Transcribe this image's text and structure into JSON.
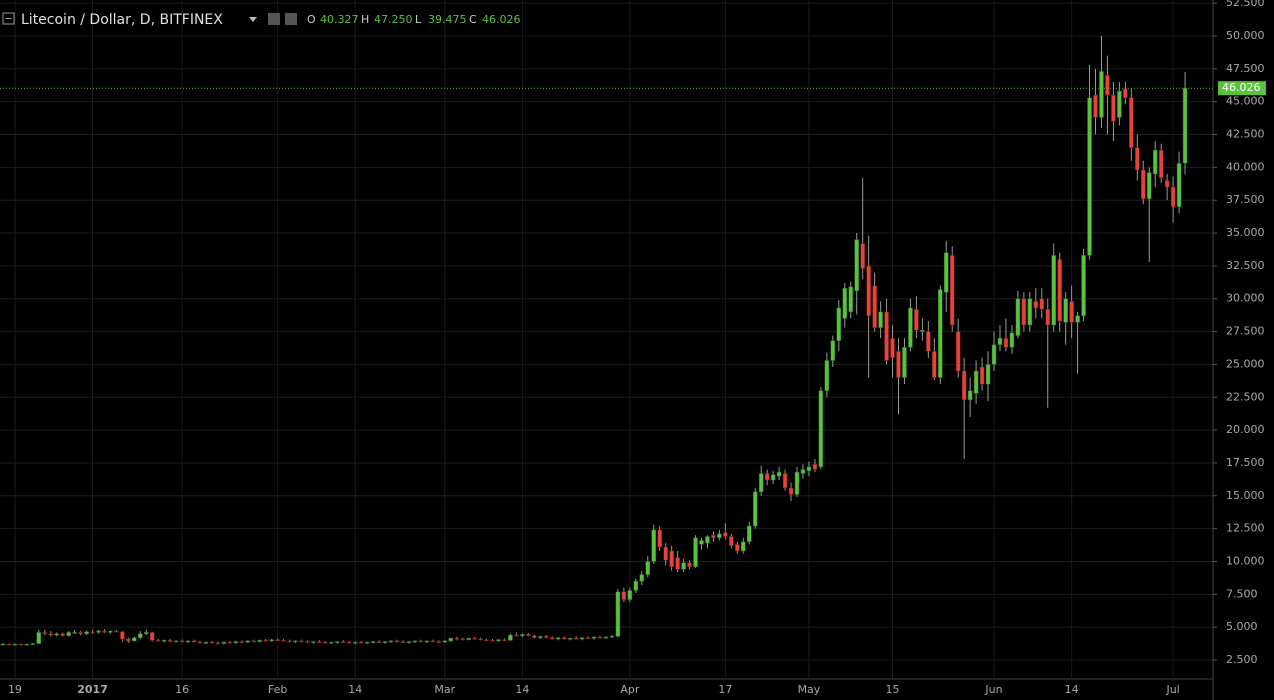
{
  "chart_data": {
    "type": "candlestick",
    "title": "Litecoin / Dollar, D, BITFINEX",
    "legend": [
      {
        "key": "O",
        "value": "40.327"
      },
      {
        "key": "H",
        "value": "47.250"
      },
      {
        "key": "L",
        "value": "39.475"
      },
      {
        "key": "C",
        "value": "46.026"
      }
    ],
    "up_color": "#5bc23f",
    "down_color": "#e5433b",
    "grid": true,
    "last_price": {
      "value": 46.026,
      "label": "46.026"
    },
    "ylim": [
      1.13,
      52.74
    ],
    "yticks": [
      {
        "value": 2.5,
        "label": "2.500"
      },
      {
        "value": 5,
        "label": "5.000"
      },
      {
        "value": 7.5,
        "label": "7.500"
      },
      {
        "value": 10,
        "label": "10.000"
      },
      {
        "value": 12.5,
        "label": "12.500"
      },
      {
        "value": 15,
        "label": "15.000"
      },
      {
        "value": 17.5,
        "label": "17.500"
      },
      {
        "value": 20,
        "label": "20.000"
      },
      {
        "value": 22.5,
        "label": "22.500"
      },
      {
        "value": 25,
        "label": "25.000"
      },
      {
        "value": 27.5,
        "label": "27.500"
      },
      {
        "value": 30,
        "label": "30.000"
      },
      {
        "value": 32.5,
        "label": "32.500"
      },
      {
        "value": 35,
        "label": "35.000"
      },
      {
        "value": 37.5,
        "label": "37.500"
      },
      {
        "value": 40,
        "label": "40.000"
      },
      {
        "value": 42.5,
        "label": "42.500"
      },
      {
        "value": 45,
        "label": "45.000"
      },
      {
        "value": 47.5,
        "label": "47.500"
      },
      {
        "value": 50,
        "label": "50.000"
      },
      {
        "value": 52.5,
        "label": "52.500"
      }
    ],
    "categories": [
      null,
      null,
      "19",
      null,
      null,
      null,
      null,
      null,
      null,
      null,
      null,
      null,
      null,
      null,
      null,
      "2017",
      null,
      null,
      null,
      null,
      null,
      null,
      null,
      null,
      null,
      null,
      null,
      null,
      null,
      null,
      "16",
      null,
      null,
      null,
      null,
      null,
      null,
      null,
      null,
      null,
      null,
      null,
      null,
      null,
      null,
      null,
      "Feb",
      null,
      null,
      null,
      null,
      null,
      null,
      null,
      null,
      null,
      null,
      null,
      null,
      "14",
      null,
      null,
      null,
      null,
      null,
      null,
      null,
      null,
      null,
      null,
      null,
      null,
      null,
      null,
      "Mar",
      null,
      null,
      null,
      null,
      null,
      null,
      null,
      null,
      null,
      null,
      null,
      null,
      "14",
      null,
      null,
      null,
      null,
      null,
      null,
      null,
      null,
      null,
      null,
      null,
      null,
      null,
      null,
      null,
      null,
      null,
      "Apr",
      null,
      null,
      null,
      null,
      null,
      null,
      null,
      null,
      null,
      null,
      null,
      null,
      null,
      null,
      null,
      "17",
      null,
      null,
      null,
      null,
      null,
      null,
      null,
      null,
      null,
      null,
      null,
      null,
      null,
      "May",
      null,
      null,
      null,
      null,
      null,
      null,
      null,
      null,
      null,
      null,
      null,
      null,
      null,
      "15",
      null,
      null,
      null,
      null,
      null,
      null,
      null,
      null,
      null,
      null,
      null,
      null,
      null,
      null,
      null,
      null,
      "Jun",
      null,
      null,
      null,
      null,
      null,
      null,
      null,
      null,
      null,
      null,
      null,
      null,
      "14",
      null,
      null,
      null,
      null,
      null,
      null,
      null,
      null,
      null,
      null,
      null,
      null,
      null,
      null,
      null,
      null,
      "Jul",
      null,
      null
    ],
    "ohlc": [
      [
        3.7,
        3.8,
        3.6,
        3.7
      ],
      [
        3.7,
        3.75,
        3.6,
        3.65
      ],
      [
        3.65,
        3.75,
        3.6,
        3.7
      ],
      [
        3.7,
        3.75,
        3.6,
        3.65
      ],
      [
        3.65,
        3.75,
        3.6,
        3.7
      ],
      [
        3.7,
        3.8,
        3.65,
        3.75
      ],
      [
        3.75,
        4.8,
        3.7,
        4.6
      ],
      [
        4.6,
        4.8,
        4.4,
        4.5
      ],
      [
        4.5,
        4.7,
        4.3,
        4.4
      ],
      [
        4.4,
        4.6,
        4.3,
        4.5
      ],
      [
        4.5,
        4.6,
        4.3,
        4.35
      ],
      [
        4.35,
        4.7,
        4.3,
        4.6
      ],
      [
        4.6,
        4.8,
        4.5,
        4.6
      ],
      [
        4.6,
        4.7,
        4.4,
        4.5
      ],
      [
        4.5,
        4.75,
        4.4,
        4.65
      ],
      [
        4.65,
        4.8,
        4.5,
        4.6
      ],
      [
        4.6,
        4.8,
        4.5,
        4.7
      ],
      [
        4.7,
        4.85,
        4.55,
        4.6
      ],
      [
        4.6,
        4.75,
        4.5,
        4.7
      ],
      [
        4.7,
        4.8,
        4.6,
        4.65
      ],
      [
        4.65,
        4.7,
        3.9,
        4.1
      ],
      [
        4.1,
        4.2,
        3.8,
        3.95
      ],
      [
        3.95,
        4.3,
        3.9,
        4.2
      ],
      [
        4.2,
        4.7,
        4.1,
        4.5
      ],
      [
        4.5,
        4.8,
        4.4,
        4.6
      ],
      [
        4.6,
        4.65,
        3.9,
        4.0
      ],
      [
        4.0,
        4.1,
        3.9,
        3.95
      ],
      [
        3.95,
        4.05,
        3.85,
        4.0
      ],
      [
        4.0,
        4.1,
        3.9,
        3.9
      ],
      [
        3.9,
        4.0,
        3.85,
        3.95
      ],
      [
        3.95,
        4.05,
        3.85,
        3.9
      ],
      [
        3.9,
        4.0,
        3.8,
        3.95
      ],
      [
        3.95,
        4.05,
        3.85,
        3.85
      ],
      [
        3.85,
        3.95,
        3.75,
        3.8
      ],
      [
        3.8,
        3.9,
        3.7,
        3.85
      ],
      [
        3.85,
        3.95,
        3.75,
        3.8
      ],
      [
        3.8,
        3.9,
        3.7,
        3.75
      ],
      [
        3.75,
        3.9,
        3.7,
        3.85
      ],
      [
        3.85,
        3.95,
        3.75,
        3.8
      ],
      [
        3.8,
        3.95,
        3.75,
        3.9
      ],
      [
        3.9,
        4.0,
        3.8,
        3.85
      ],
      [
        3.85,
        4.0,
        3.8,
        3.95
      ],
      [
        3.95,
        4.05,
        3.85,
        3.9
      ],
      [
        3.9,
        4.05,
        3.85,
        4.0
      ],
      [
        4.0,
        4.1,
        3.9,
        3.95
      ],
      [
        3.95,
        4.1,
        3.9,
        4.05
      ],
      [
        4.05,
        4.15,
        3.95,
        4.0
      ],
      [
        4.0,
        4.1,
        3.9,
        3.95
      ],
      [
        3.95,
        4.05,
        3.85,
        3.9
      ],
      [
        3.9,
        4.0,
        3.8,
        3.95
      ],
      [
        3.95,
        4.05,
        3.85,
        3.9
      ],
      [
        3.9,
        4.0,
        3.8,
        3.85
      ],
      [
        3.85,
        3.95,
        3.75,
        3.9
      ],
      [
        3.9,
        4.0,
        3.8,
        3.85
      ],
      [
        3.85,
        3.95,
        3.75,
        3.8
      ],
      [
        3.8,
        3.9,
        3.7,
        3.85
      ],
      [
        3.85,
        3.95,
        3.75,
        3.9
      ],
      [
        3.9,
        4.0,
        3.8,
        3.85
      ],
      [
        3.85,
        3.95,
        3.75,
        3.8
      ],
      [
        3.8,
        3.9,
        3.7,
        3.85
      ],
      [
        3.85,
        3.95,
        3.75,
        3.8
      ],
      [
        3.8,
        3.9,
        3.7,
        3.85
      ],
      [
        3.85,
        3.95,
        3.75,
        3.9
      ],
      [
        3.9,
        4.0,
        3.8,
        3.85
      ],
      [
        3.85,
        3.95,
        3.75,
        3.9
      ],
      [
        3.9,
        4.0,
        3.8,
        3.95
      ],
      [
        3.95,
        4.05,
        3.85,
        3.9
      ],
      [
        3.9,
        4.0,
        3.8,
        3.85
      ],
      [
        3.85,
        3.95,
        3.75,
        3.9
      ],
      [
        3.9,
        4.0,
        3.8,
        3.95
      ],
      [
        3.95,
        4.05,
        3.85,
        3.9
      ],
      [
        3.9,
        4.0,
        3.8,
        3.95
      ],
      [
        3.95,
        4.05,
        3.85,
        3.9
      ],
      [
        3.9,
        4.0,
        3.8,
        3.85
      ],
      [
        3.85,
        4.0,
        3.8,
        3.95
      ],
      [
        3.95,
        4.2,
        3.9,
        4.15
      ],
      [
        4.15,
        4.25,
        4.0,
        4.1
      ],
      [
        4.1,
        4.2,
        4.0,
        4.05
      ],
      [
        4.05,
        4.2,
        4.0,
        4.15
      ],
      [
        4.15,
        4.25,
        4.05,
        4.1
      ],
      [
        4.1,
        4.2,
        4.0,
        4.05
      ],
      [
        4.05,
        4.15,
        3.95,
        4.0
      ],
      [
        4.0,
        4.1,
        3.9,
        3.95
      ],
      [
        3.95,
        4.1,
        3.9,
        4.05
      ],
      [
        4.05,
        4.15,
        3.95,
        4.0
      ],
      [
        4.0,
        4.5,
        3.95,
        4.4
      ],
      [
        4.4,
        4.6,
        4.3,
        4.35
      ],
      [
        4.35,
        4.5,
        4.25,
        4.45
      ],
      [
        4.45,
        4.55,
        4.3,
        4.35
      ],
      [
        4.35,
        4.45,
        4.15,
        4.2
      ],
      [
        4.2,
        4.35,
        4.1,
        4.3
      ],
      [
        4.3,
        4.4,
        4.15,
        4.2
      ],
      [
        4.2,
        4.3,
        4.05,
        4.1
      ],
      [
        4.1,
        4.25,
        4.0,
        4.2
      ],
      [
        4.2,
        4.3,
        4.05,
        4.1
      ],
      [
        4.1,
        4.2,
        4.0,
        4.15
      ],
      [
        4.15,
        4.3,
        4.05,
        4.1
      ],
      [
        4.1,
        4.25,
        4.0,
        4.2
      ],
      [
        4.2,
        4.3,
        4.1,
        4.15
      ],
      [
        4.15,
        4.3,
        4.05,
        4.25
      ],
      [
        4.25,
        4.35,
        4.15,
        4.2
      ],
      [
        4.2,
        4.3,
        4.1,
        4.25
      ],
      [
        4.25,
        4.4,
        4.2,
        4.3
      ],
      [
        4.3,
        7.9,
        4.2,
        7.7
      ],
      [
        7.7,
        8.0,
        6.9,
        7.1
      ],
      [
        7.1,
        8.0,
        6.9,
        7.8
      ],
      [
        7.8,
        8.7,
        7.6,
        8.5
      ],
      [
        8.5,
        9.3,
        8.2,
        9.0
      ],
      [
        9.0,
        10.4,
        8.8,
        10.0
      ],
      [
        10.0,
        12.8,
        9.8,
        12.4
      ],
      [
        12.4,
        12.7,
        10.8,
        11.1
      ],
      [
        11.1,
        11.4,
        9.7,
        10.1
      ],
      [
        10.8,
        11.2,
        9.3,
        9.6
      ],
      [
        10.3,
        10.8,
        9.2,
        9.4
      ],
      [
        9.4,
        10.2,
        9.2,
        9.9
      ],
      [
        9.9,
        10.1,
        9.4,
        9.6
      ],
      [
        9.6,
        12.0,
        9.5,
        11.8
      ],
      [
        11.3,
        11.8,
        10.9,
        11.6
      ],
      [
        11.4,
        12.0,
        11.0,
        11.9
      ],
      [
        12.0,
        12.3,
        11.5,
        11.8
      ],
      [
        11.8,
        12.4,
        11.6,
        12.1
      ],
      [
        12.2,
        12.9,
        11.7,
        11.9
      ],
      [
        11.9,
        12.1,
        11.0,
        11.2
      ],
      [
        11.3,
        11.5,
        10.6,
        10.8
      ],
      [
        10.8,
        11.8,
        10.6,
        11.5
      ],
      [
        11.5,
        13.0,
        11.3,
        12.7
      ],
      [
        12.7,
        15.6,
        12.5,
        15.3
      ],
      [
        15.3,
        17.3,
        15.0,
        16.7
      ],
      [
        16.7,
        17.0,
        15.8,
        16.2
      ],
      [
        16.2,
        16.9,
        15.9,
        16.6
      ],
      [
        16.5,
        17.2,
        16.2,
        16.8
      ],
      [
        16.7,
        17.0,
        15.4,
        15.6
      ],
      [
        15.6,
        16.0,
        14.6,
        15.1
      ],
      [
        15.1,
        17.2,
        14.9,
        16.8
      ],
      [
        16.7,
        17.4,
        16.3,
        17.0
      ],
      [
        16.9,
        17.6,
        16.5,
        17.2
      ],
      [
        17.4,
        17.8,
        16.8,
        17.0
      ],
      [
        17.2,
        23.3,
        17.0,
        23.0
      ],
      [
        23.0,
        25.9,
        22.5,
        25.3
      ],
      [
        25.3,
        27.2,
        24.8,
        26.8
      ],
      [
        26.8,
        29.9,
        26.0,
        29.3
      ],
      [
        28.5,
        31.2,
        27.8,
        30.8
      ],
      [
        29.0,
        31.3,
        28.5,
        30.9
      ],
      [
        30.6,
        35.0,
        28.8,
        34.5
      ],
      [
        34.2,
        39.2,
        31.5,
        32.3
      ],
      [
        32.5,
        34.8,
        24.0,
        28.7
      ],
      [
        31.0,
        32.0,
        27.5,
        27.8
      ],
      [
        27.8,
        29.8,
        27.0,
        29.0
      ],
      [
        29.0,
        30.0,
        25.0,
        25.3
      ],
      [
        27.0,
        28.0,
        24.0,
        25.5
      ],
      [
        26.0,
        27.0,
        21.2,
        24.0
      ],
      [
        24.0,
        27.0,
        23.5,
        26.3
      ],
      [
        26.3,
        30.0,
        26.0,
        29.3
      ],
      [
        29.2,
        30.2,
        27.0,
        27.6
      ],
      [
        27.5,
        28.5,
        26.8,
        27.6
      ],
      [
        27.5,
        28.3,
        25.5,
        26.0
      ],
      [
        26.0,
        27.0,
        23.8,
        24.0
      ],
      [
        24.0,
        31.0,
        23.5,
        30.7
      ],
      [
        30.5,
        34.4,
        29.0,
        33.5
      ],
      [
        33.3,
        34.0,
        27.5,
        28.0
      ],
      [
        27.5,
        28.5,
        24.0,
        24.5
      ],
      [
        24.5,
        25.5,
        17.8,
        22.3
      ],
      [
        22.3,
        24.0,
        21.0,
        23.0
      ],
      [
        22.8,
        25.3,
        22.0,
        24.5
      ],
      [
        24.8,
        25.5,
        23.0,
        23.5
      ],
      [
        23.5,
        26.0,
        22.2,
        25.0
      ],
      [
        25.0,
        27.5,
        24.5,
        26.5
      ],
      [
        26.5,
        28.0,
        26.0,
        27.0
      ],
      [
        27.0,
        28.5,
        26.0,
        26.3
      ],
      [
        26.3,
        28.0,
        25.8,
        27.4
      ],
      [
        27.2,
        30.6,
        27.0,
        30.0
      ],
      [
        30.0,
        30.5,
        27.5,
        28.0
      ],
      [
        28.0,
        30.5,
        27.5,
        30.0
      ],
      [
        29.8,
        30.8,
        28.5,
        29.3
      ],
      [
        30.0,
        30.8,
        28.5,
        29.2
      ],
      [
        29.2,
        30.0,
        21.7,
        28.0
      ],
      [
        28.0,
        34.2,
        27.5,
        33.3
      ],
      [
        33.0,
        33.5,
        27.5,
        28.3
      ],
      [
        28.2,
        30.5,
        26.5,
        30.0
      ],
      [
        29.8,
        31.0,
        27.0,
        28.2
      ],
      [
        28.2,
        29.0,
        24.3,
        28.7
      ],
      [
        28.7,
        33.8,
        28.3,
        33.3
      ],
      [
        33.3,
        47.8,
        33.0,
        45.3
      ],
      [
        45.5,
        47.5,
        42.5,
        43.8
      ],
      [
        43.8,
        50.0,
        43.0,
        47.3
      ],
      [
        47.0,
        48.5,
        42.5,
        45.5
      ],
      [
        45.5,
        46.5,
        42.0,
        43.5
      ],
      [
        43.8,
        46.5,
        43.2,
        45.8
      ],
      [
        46.0,
        46.5,
        44.8,
        45.3
      ],
      [
        45.3,
        46.0,
        40.5,
        41.5
      ],
      [
        41.5,
        42.5,
        39.0,
        39.8
      ],
      [
        39.8,
        40.5,
        37.2,
        37.6
      ],
      [
        37.6,
        40.0,
        32.8,
        39.6
      ],
      [
        39.5,
        42.0,
        38.5,
        41.3
      ],
      [
        41.3,
        41.8,
        38.8,
        39.2
      ],
      [
        39.0,
        39.5,
        37.5,
        38.5
      ],
      [
        38.5,
        39.3,
        35.8,
        37.0
      ],
      [
        37.0,
        41.2,
        36.5,
        40.3
      ],
      [
        40.327,
        47.25,
        39.475,
        46.026
      ]
    ]
  }
}
